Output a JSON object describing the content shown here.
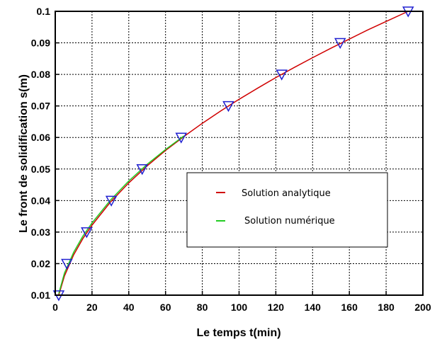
{
  "chart_data": {
    "type": "line",
    "title": "",
    "xlabel": "Le temps t(min)",
    "ylabel": "Le front de solidification s(m)",
    "xlim": [
      0,
      200
    ],
    "ylim": [
      0.01,
      0.1
    ],
    "xticks": [
      0,
      20,
      40,
      60,
      80,
      100,
      120,
      140,
      160,
      180,
      200
    ],
    "yticks": [
      0.01,
      0.02,
      0.03,
      0.04,
      0.05,
      0.06,
      0.07,
      0.08,
      0.09,
      0.1
    ],
    "xtick_labels": [
      "0",
      "20",
      "40",
      "60",
      "80",
      "100",
      "120",
      "140",
      "160",
      "180",
      "200"
    ],
    "ytick_labels": [
      "0.01",
      "0.02",
      "0.03",
      "0.04",
      "0.05",
      "0.06",
      "0.07",
      "0.08",
      "0.09",
      "0.1"
    ],
    "grid": true,
    "legend_placement": "center-right",
    "series": [
      {
        "name": "Solution analytique",
        "color": "#d00000",
        "x": [
          1.9,
          5,
          10,
          15,
          20,
          30,
          40,
          50,
          60,
          70,
          80,
          90,
          100,
          110,
          120,
          130,
          140,
          150,
          160,
          170,
          180,
          192
        ],
        "y": [
          0.01,
          0.0161,
          0.0228,
          0.0279,
          0.0322,
          0.0395,
          0.0456,
          0.051,
          0.0559,
          0.0603,
          0.0645,
          0.0684,
          0.0721,
          0.0756,
          0.079,
          0.0822,
          0.0853,
          0.0883,
          0.0912,
          0.0941,
          0.0968,
          0.1
        ]
      },
      {
        "name": "Solution numérique",
        "color": "#22cc22",
        "x": [
          1.9,
          5,
          10,
          15,
          20,
          30,
          40,
          50,
          60,
          70
        ],
        "y": [
          0.0105,
          0.017,
          0.0236,
          0.0287,
          0.0329,
          0.0401,
          0.0462,
          0.0515,
          0.0562,
          0.0605
        ]
      },
      {
        "name": "",
        "color": "#2020d0",
        "marker": "triangle-down",
        "x": [
          1.9,
          6.3,
          17.1,
          30.5,
          47.3,
          68.5,
          94.2,
          123.2,
          155,
          192
        ],
        "y": [
          0.01,
          0.02,
          0.03,
          0.04,
          0.05,
          0.06,
          0.07,
          0.08,
          0.09,
          0.1
        ]
      }
    ]
  }
}
